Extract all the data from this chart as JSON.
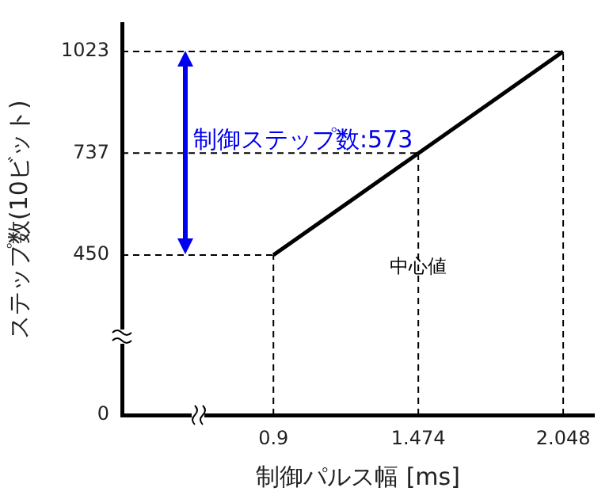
{
  "chart_data": {
    "type": "line",
    "xlabel": "制御パルス幅 [ms]",
    "ylabel": "ステップ数(10ビット)",
    "x": [
      0.9,
      2.048
    ],
    "series": [
      {
        "color": "#000000",
        "values": [
          450,
          1023
        ]
      }
    ],
    "xlim": [
      0.3,
      2.17
    ],
    "ylim": [
      0,
      1100
    ],
    "xticks": [
      0.9,
      1.474,
      2.048
    ],
    "yticks": [
      0,
      450,
      737,
      1023
    ],
    "grid": false,
    "legend": false,
    "marker": "none",
    "line_style": "solid",
    "ref_lines": [
      {
        "axis": "y",
        "value": 450,
        "color": "#000000",
        "line_style": "dashed"
      },
      {
        "axis": "y",
        "value": 737,
        "color": "#000000",
        "line_style": "dashed"
      },
      {
        "axis": "y",
        "value": 1023,
        "color": "#000000",
        "line_style": "dashed"
      },
      {
        "axis": "x",
        "value": 0.9,
        "color": "#000000",
        "line_style": "dashed"
      },
      {
        "axis": "x",
        "value": 1.474,
        "color": "#000000",
        "line_style": "dashed"
      },
      {
        "axis": "x",
        "value": 2.048,
        "color": "#000000",
        "line_style": "dashed"
      }
    ],
    "annotations": [
      "制御ステップ数:573",
      {
        "text": "中心値",
        "x": 1.474,
        "y": 414
      }
    ]
  }
}
